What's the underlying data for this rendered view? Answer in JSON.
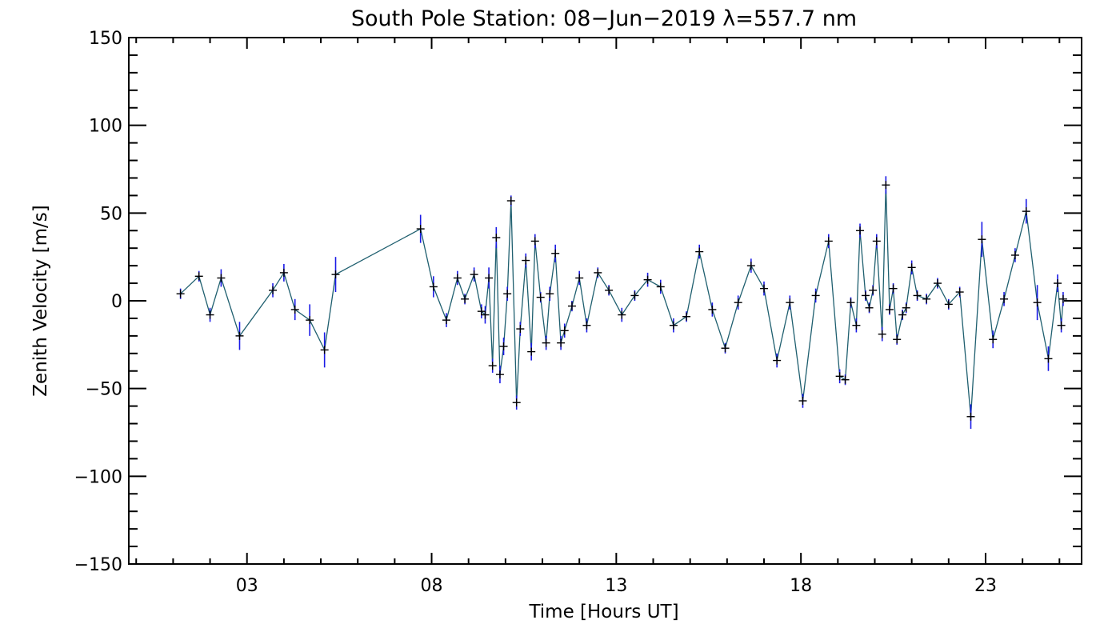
{
  "chart_data": {
    "type": "scatter",
    "title": "South Pole Station: 08−Jun−2019 λ=557.7 nm",
    "xlabel": "Time [Hours UT]",
    "ylabel": "Zenith Velocity [m/s]",
    "xlim": [
      -0.2,
      25.6
    ],
    "ylim": [
      -150,
      150
    ],
    "x_ticks": [
      3,
      8,
      13,
      18,
      23
    ],
    "x_tick_labels": [
      "03",
      "08",
      "13",
      "18",
      "23"
    ],
    "y_ticks": [
      -150,
      -100,
      -50,
      0,
      50,
      100,
      150
    ],
    "y_tick_labels": [
      "−150",
      "−100",
      "−50",
      "0",
      "50",
      "100",
      "150"
    ],
    "grid": false,
    "colors": {
      "line": "#1f5f6f",
      "marker": "#000000",
      "errorbar": "#1a1ae6",
      "axis": "#000000"
    },
    "series": [
      {
        "name": "Zenith Velocity",
        "x": [
          1.2,
          1.7,
          2.0,
          2.3,
          2.8,
          3.7,
          4.0,
          4.3,
          4.7,
          5.1,
          5.4,
          7.7,
          8.05,
          8.4,
          8.7,
          8.9,
          9.15,
          9.35,
          9.45,
          9.55,
          9.65,
          9.75,
          9.85,
          9.95,
          10.05,
          10.15,
          10.3,
          10.4,
          10.55,
          10.7,
          10.8,
          10.95,
          11.1,
          11.2,
          11.35,
          11.5,
          11.6,
          11.8,
          12.0,
          12.2,
          12.5,
          12.8,
          13.15,
          13.5,
          13.85,
          14.2,
          14.55,
          14.9,
          15.25,
          15.6,
          15.95,
          16.3,
          16.65,
          17.0,
          17.35,
          17.7,
          18.05,
          18.4,
          18.75,
          19.05,
          19.2,
          19.35,
          19.5,
          19.6,
          19.75,
          19.85,
          19.95,
          20.05,
          20.2,
          20.3,
          20.4,
          20.5,
          20.6,
          20.75,
          20.85,
          21.0,
          21.15,
          21.4,
          21.7,
          22.0,
          22.3,
          22.6,
          22.9,
          23.2,
          23.5,
          23.8,
          24.1,
          24.4,
          24.7,
          24.95,
          25.05,
          25.1
        ],
        "y": [
          4,
          14,
          -8,
          13,
          -20,
          6,
          16,
          -5,
          -11,
          -28,
          15,
          41,
          8,
          -11,
          13,
          1,
          15,
          -6,
          -8,
          13,
          -37,
          36,
          -42,
          -26,
          4,
          57,
          -58,
          -16,
          23,
          -29,
          34,
          2,
          -24,
          4,
          27,
          -24,
          -17,
          -3,
          13,
          -14,
          16,
          6,
          -8,
          3,
          12,
          8,
          -14,
          -9,
          28,
          -5,
          -27,
          -1,
          20,
          7,
          -34,
          -1,
          -57,
          3,
          34,
          -43,
          -45,
          -1,
          -14,
          40,
          3,
          -4,
          6,
          34,
          -19,
          66,
          -5,
          7,
          -22,
          -8,
          -4,
          19,
          3,
          1,
          10,
          -2,
          5,
          -66,
          35,
          -22,
          1,
          26,
          51,
          -1,
          -33,
          10,
          -14,
          1
        ],
        "err": [
          3,
          3,
          4,
          5,
          8,
          4,
          5,
          6,
          9,
          10,
          10,
          8,
          6,
          4,
          4,
          3,
          4,
          4,
          5,
          6,
          4,
          6,
          5,
          5,
          4,
          3,
          4,
          4,
          4,
          5,
          4,
          3,
          4,
          4,
          5,
          4,
          4,
          3,
          4,
          4,
          3,
          3,
          4,
          3,
          4,
          4,
          4,
          3,
          4,
          4,
          3,
          4,
          4,
          4,
          4,
          4,
          4,
          4,
          4,
          4,
          3,
          3,
          4,
          4,
          3,
          3,
          3,
          4,
          4,
          5,
          3,
          3,
          3,
          3,
          3,
          4,
          3,
          3,
          3,
          3,
          3,
          7,
          10,
          5,
          4,
          4,
          7,
          10,
          7,
          5,
          4,
          4
        ]
      }
    ]
  }
}
